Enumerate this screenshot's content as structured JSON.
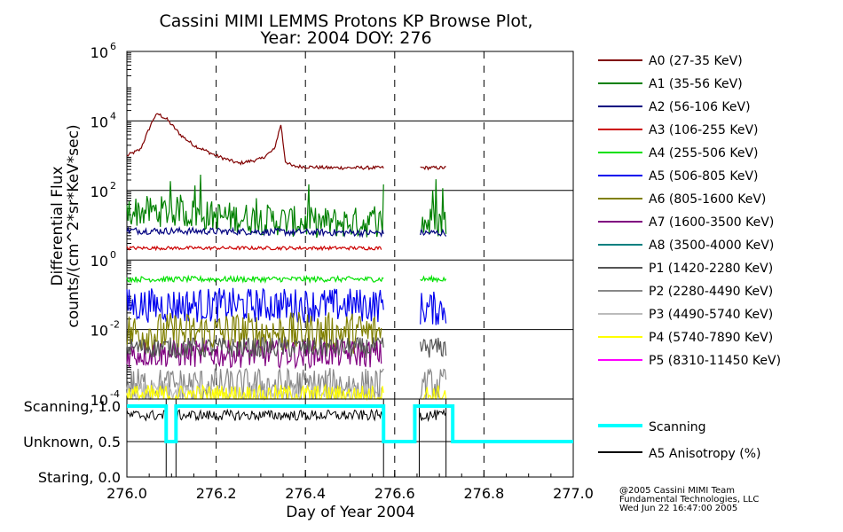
{
  "chart_data": {
    "type": "line",
    "title": "Cassini MIMI LEMMS Protons KP Browse Plot,",
    "subtitle": "Year: 2004 DOY: 276",
    "xlabel": "Day of Year 2004",
    "ylabel_line1": "Differential Flux",
    "ylabel_line2": "counts/(cm^2*sr*KeV*sec)",
    "xlim": [
      276.0,
      277.0
    ],
    "x_ticks": [
      "276.0",
      "276.2",
      "276.4",
      "276.6",
      "276.8",
      "277.0"
    ],
    "x_tick_values": [
      276.0,
      276.2,
      276.4,
      276.6,
      276.8,
      277.0
    ],
    "y_scale": "log",
    "ylim": [
      0.0001,
      1000000
    ],
    "y_tick_exponents": [
      "6",
      "4",
      "2",
      "0",
      "-2",
      "-4"
    ],
    "y_tick_exponent_values": [
      6,
      4,
      2,
      0,
      -2,
      -4
    ],
    "data_gaps": [
      [
        276.575,
        276.655
      ],
      [
        276.715,
        277.0
      ]
    ],
    "series": [
      {
        "name": "A0 (27-35 KeV)",
        "color": "#800000",
        "points": [
          [
            276.0,
            1000
          ],
          [
            276.03,
            1500
          ],
          [
            276.06,
            12000
          ],
          [
            276.07,
            16000
          ],
          [
            276.09,
            11000
          ],
          [
            276.12,
            4000
          ],
          [
            276.15,
            2000
          ],
          [
            276.2,
            1000
          ],
          [
            276.25,
            600
          ],
          [
            276.3,
            800
          ],
          [
            276.33,
            1500
          ],
          [
            276.345,
            8000
          ],
          [
            276.355,
            700
          ],
          [
            276.37,
            500
          ],
          [
            276.45,
            450
          ],
          [
            276.57,
            450
          ],
          [
            276.66,
            450
          ],
          [
            276.715,
            450
          ]
        ]
      },
      {
        "name": "A1 (35-56 KeV)",
        "color": "#008000",
        "points": [
          [
            276.0,
            25
          ],
          [
            276.1,
            25
          ],
          [
            276.2,
            18
          ],
          [
            276.3,
            15
          ],
          [
            276.4,
            12
          ],
          [
            276.5,
            12
          ],
          [
            276.57,
            12
          ],
          [
            276.66,
            12
          ],
          [
            276.715,
            12
          ]
        ]
      },
      {
        "name": "A2 (56-106 KeV)",
        "color": "#000080",
        "points": [
          [
            276.0,
            7
          ],
          [
            276.3,
            6.5
          ],
          [
            276.57,
            6
          ],
          [
            276.66,
            6
          ],
          [
            276.715,
            6
          ]
        ]
      },
      {
        "name": "A3 (106-255 KeV)",
        "color": "#cc0000",
        "points": [
          [
            276.0,
            2.2
          ],
          [
            276.3,
            2.2
          ],
          [
            276.57,
            2.2
          ]
        ]
      },
      {
        "name": "A4 (255-506 KeV)",
        "color": "#00e000",
        "points": [
          [
            276.0,
            0.28
          ],
          [
            276.3,
            0.28
          ],
          [
            276.57,
            0.28
          ],
          [
            276.66,
            0.28
          ],
          [
            276.715,
            0.28
          ]
        ]
      },
      {
        "name": "A5 (506-805 KeV)",
        "color": "#0000ee",
        "points": [
          [
            276.0,
            0.05
          ],
          [
            276.3,
            0.05
          ],
          [
            276.57,
            0.05
          ],
          [
            276.66,
            0.04
          ],
          [
            276.715,
            0.04
          ]
        ]
      },
      {
        "name": "A6 (805-1600 KeV)",
        "color": "#808000",
        "points": [
          [
            276.0,
            0.008
          ],
          [
            276.3,
            0.008
          ],
          [
            276.57,
            0.008
          ]
        ]
      },
      {
        "name": "A7 (1600-3500 KeV)",
        "color": "#800080",
        "points": [
          [
            276.0,
            0.002
          ],
          [
            276.3,
            0.002
          ],
          [
            276.57,
            0.002
          ]
        ]
      },
      {
        "name": "A8 (3500-4000 KeV)",
        "color": "#008080",
        "points": []
      },
      {
        "name": "P1 (1420-2280 KeV)",
        "color": "#555555",
        "points": [
          [
            276.0,
            0.003
          ],
          [
            276.3,
            0.003
          ],
          [
            276.57,
            0.003
          ],
          [
            276.66,
            0.003
          ],
          [
            276.715,
            0.003
          ]
        ]
      },
      {
        "name": "P2 (2280-4490 KeV)",
        "color": "#888888",
        "points": [
          [
            276.0,
            0.00025
          ],
          [
            276.3,
            0.00025
          ],
          [
            276.57,
            0.00025
          ],
          [
            276.66,
            0.00025
          ],
          [
            276.715,
            0.00025
          ]
        ]
      },
      {
        "name": "P3 (4490-5740 KeV)",
        "color": "#bbbbbb",
        "points": [
          [
            276.0,
            0.00015
          ],
          [
            276.57,
            0.00015
          ]
        ]
      },
      {
        "name": "P4 (5740-7890 KeV)",
        "color": "#ffff00",
        "points": [
          [
            276.0,
            0.00013
          ],
          [
            276.57,
            0.00013
          ],
          [
            276.66,
            0.00013
          ],
          [
            276.715,
            0.00013
          ]
        ]
      },
      {
        "name": "P5 (8310-11450 KeV)",
        "color": "#ff00ff",
        "points": []
      }
    ],
    "lower_panel": {
      "y_ticks": [
        "Scanning, 1.0",
        "Unknown, 0.5",
        "Staring, 0.0"
      ],
      "y_tick_values": [
        1.0,
        0.5,
        0.0
      ],
      "ylim": [
        0.0,
        1.1
      ],
      "scanning": {
        "name": "Scanning",
        "color": "#00ffff",
        "steps": [
          [
            276.0,
            1.0
          ],
          [
            276.088,
            0.5
          ],
          [
            276.11,
            1.0
          ],
          [
            276.575,
            0.5
          ],
          [
            276.645,
            1.0
          ],
          [
            276.73,
            0.5
          ],
          [
            277.0,
            0.5
          ]
        ]
      },
      "anisotropy": {
        "name": "A5 Anisotropy (%)",
        "color": "#000000",
        "ranges": [
          [
            276.0,
            276.088
          ],
          [
            276.11,
            276.575
          ],
          [
            276.655,
            276.715
          ]
        ],
        "level": 0.87
      }
    }
  },
  "footer": {
    "line1": "@2005 Cassini MIMI Team",
    "line2": "Fundamental Technologies, LLC",
    "line3": "Wed Jun 22 16:47:00 2005"
  }
}
